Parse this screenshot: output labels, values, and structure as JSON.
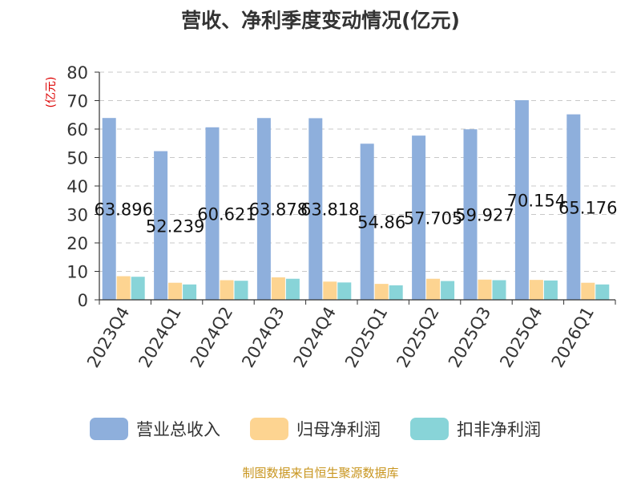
{
  "chart_data": {
    "type": "bar",
    "title": "营收、净利季度变动情况(亿元)",
    "ylabel": "(亿元)",
    "xlabel": "",
    "categories": [
      "2023Q4",
      "2024Q1",
      "2024Q2",
      "2024Q3",
      "2024Q4",
      "2025Q1",
      "2025Q2",
      "2025Q3",
      "2025Q4",
      "2026Q1"
    ],
    "series": [
      {
        "name": "营业总收入",
        "color": "#8eafdc",
        "values": [
          63.896,
          52.239,
          60.621,
          63.878,
          63.818,
          54.86,
          57.705,
          59.927,
          70.154,
          65.176
        ]
      },
      {
        "name": "归母净利润",
        "color": "#fdd491",
        "values": [
          8.3,
          6.0,
          6.9,
          7.9,
          6.4,
          5.6,
          7.4,
          7.1,
          7.0,
          6.0
        ]
      },
      {
        "name": "扣非净利润",
        "color": "#88d4d8",
        "values": [
          8.1,
          5.4,
          6.7,
          7.4,
          6.1,
          5.1,
          6.6,
          6.9,
          6.8,
          5.4
        ]
      }
    ],
    "data_labels": [
      "63.896",
      "52.239",
      "60.621",
      "63.878",
      "63.818",
      "54.86",
      "57.705",
      "59.927",
      "70.154",
      "65.176"
    ],
    "ylim": [
      0,
      80
    ],
    "yticks": [
      0,
      10,
      20,
      30,
      40,
      50,
      60,
      70,
      80
    ],
    "grid": true,
    "legend_position": "bottom"
  },
  "source_text": "制图数据来自恒生聚源数据库"
}
